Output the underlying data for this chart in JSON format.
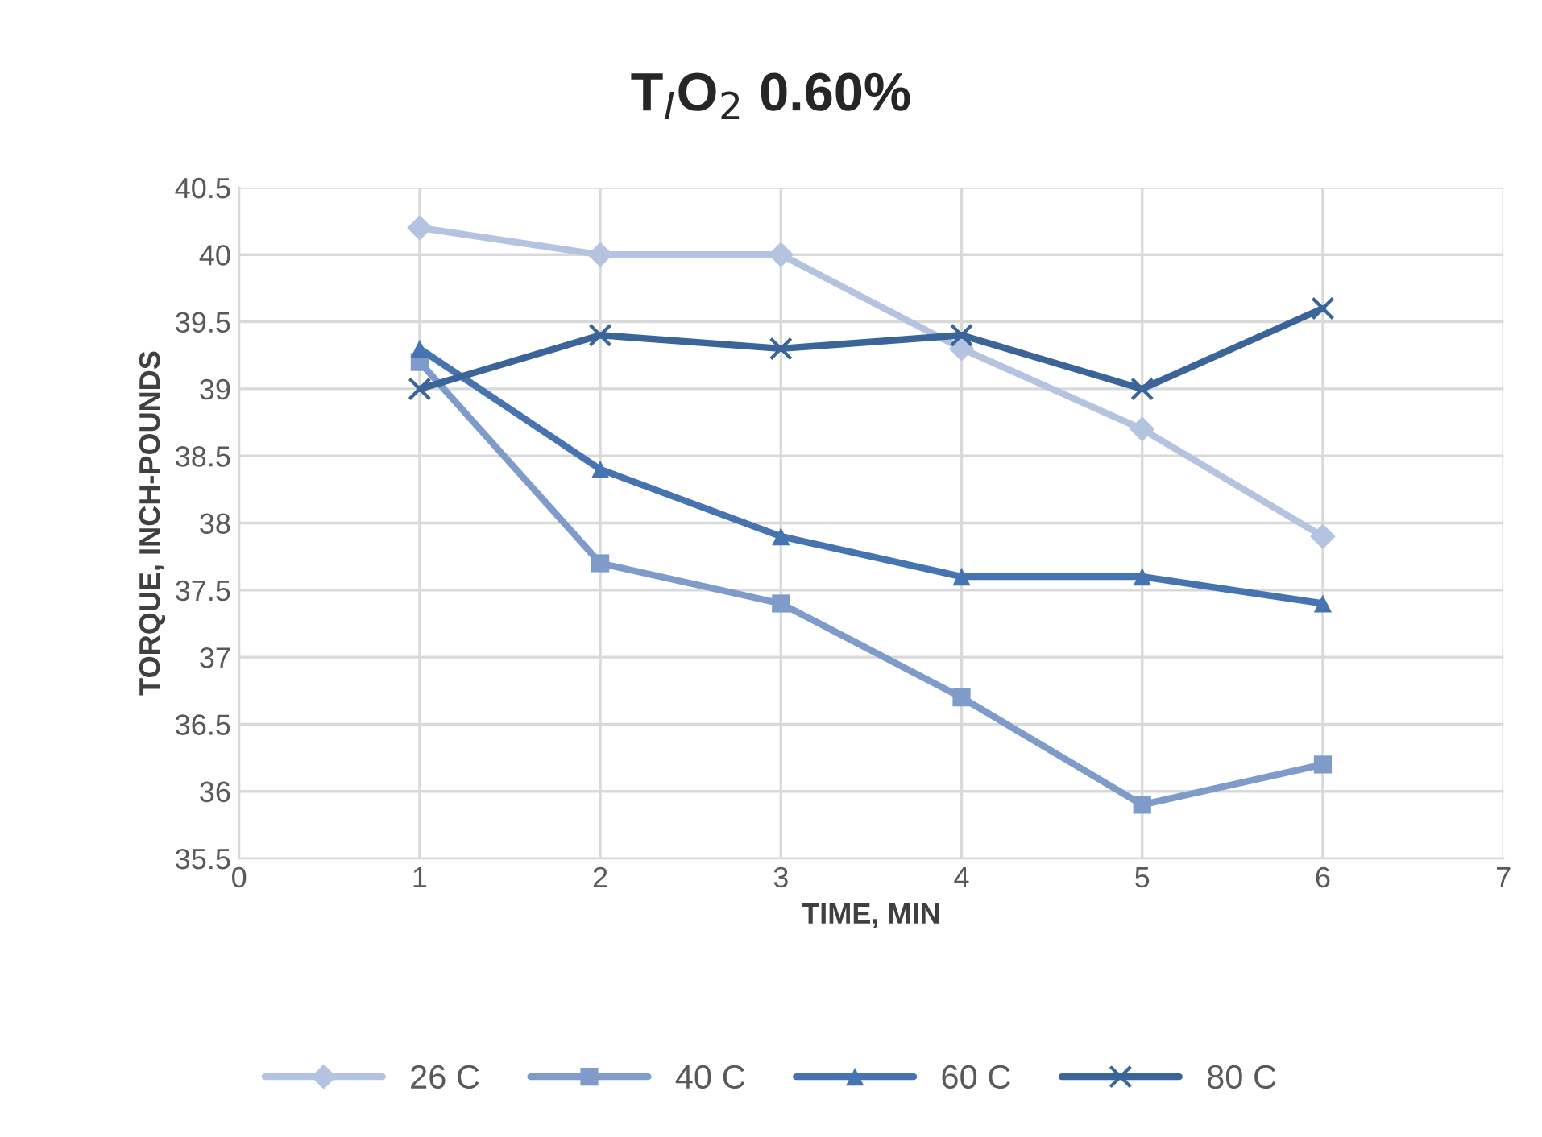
{
  "chart_data": {
    "type": "line",
    "title": "T$_{I}$O$_{2}$ 0.60%",
    "xlabel": "TIME, MIN",
    "ylabel": "TORQUE, INCH-POUNDS",
    "x": [
      1,
      2,
      3,
      4,
      5,
      6
    ],
    "series": [
      {
        "name": "26 C",
        "color": "#b4c3e0",
        "marker": "diamond",
        "values": [
          40.2,
          40.0,
          40.0,
          39.3,
          38.7,
          37.9
        ]
      },
      {
        "name": "40 C",
        "color": "#7f9bc9",
        "marker": "square",
        "values": [
          39.2,
          37.7,
          37.4,
          36.7,
          35.9,
          36.2
        ]
      },
      {
        "name": "60 C",
        "color": "#4674b0",
        "marker": "triangle",
        "values": [
          39.3,
          38.4,
          37.9,
          37.6,
          37.6,
          37.4
        ]
      },
      {
        "name": "80 C",
        "color": "#3b6598",
        "marker": "cross",
        "values": [
          39.0,
          39.4,
          39.3,
          39.4,
          39.0,
          39.6
        ]
      }
    ],
    "xlim": [
      0,
      7
    ],
    "xticks": [
      0,
      1,
      2,
      3,
      4,
      5,
      6,
      7
    ],
    "ylim": [
      35.5,
      40.5
    ],
    "yticks": [
      35.5,
      36,
      36.5,
      37,
      37.5,
      38,
      38.5,
      39,
      39.5,
      40,
      40.5
    ],
    "grid": true,
    "legend": "bottom"
  }
}
